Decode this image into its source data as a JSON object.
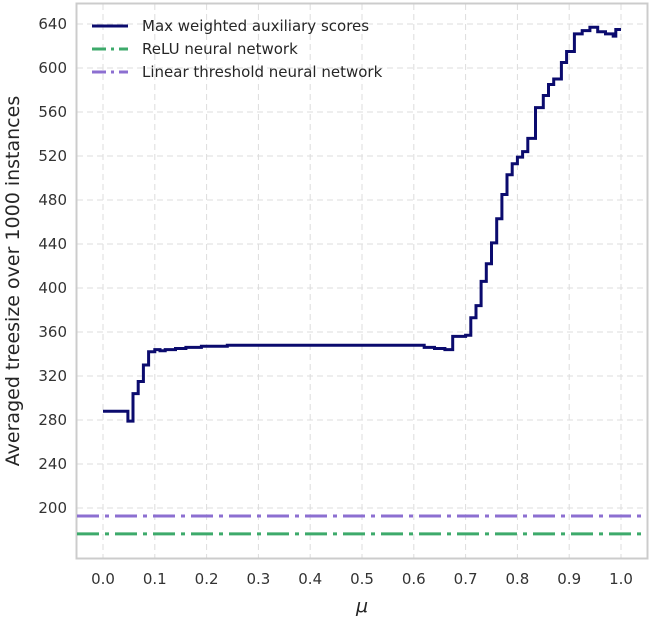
{
  "chart_data": {
    "type": "line",
    "title": "",
    "xlabel": "μ",
    "ylabel": "Averaged treesize over 1000 instances",
    "xlim": [
      -0.05,
      1.05
    ],
    "ylim": [
      158,
      665
    ],
    "grid": true,
    "legend_position": "upper left",
    "xticks": [
      "0.0",
      "0.1",
      "0.2",
      "0.3",
      "0.4",
      "0.5",
      "0.6",
      "0.7",
      "0.8",
      "0.9",
      "1.0"
    ],
    "yticks": [
      "200",
      "240",
      "280",
      "320",
      "360",
      "400",
      "440",
      "480",
      "520",
      "560",
      "600",
      "640"
    ],
    "series": [
      {
        "name": "Max weighted auxiliary scores",
        "style": "solid-step",
        "color": "#0b0b6e",
        "x": [
          0.0,
          0.048,
          0.048,
          0.058,
          0.058,
          0.068,
          0.068,
          0.078,
          0.078,
          0.088,
          0.088,
          0.1,
          0.1,
          0.11,
          0.11,
          0.12,
          0.12,
          0.14,
          0.14,
          0.16,
          0.16,
          0.19,
          0.19,
          0.24,
          0.24,
          0.62,
          0.62,
          0.64,
          0.64,
          0.66,
          0.66,
          0.675,
          0.675,
          0.7,
          0.7,
          0.71,
          0.71,
          0.72,
          0.72,
          0.73,
          0.73,
          0.74,
          0.74,
          0.75,
          0.75,
          0.76,
          0.76,
          0.77,
          0.77,
          0.78,
          0.78,
          0.79,
          0.79,
          0.8,
          0.8,
          0.81,
          0.81,
          0.82,
          0.82,
          0.835,
          0.835,
          0.85,
          0.85,
          0.86,
          0.86,
          0.87,
          0.87,
          0.885,
          0.885,
          0.895,
          0.895,
          0.91,
          0.91,
          0.925,
          0.925,
          0.94,
          0.94,
          0.955,
          0.955,
          0.97,
          0.97,
          0.985,
          0.985,
          0.99,
          0.99,
          1.0
        ],
        "y": [
          288,
          288,
          279,
          279,
          304,
          304,
          315,
          315,
          330,
          330,
          342,
          342,
          344,
          344,
          343,
          343,
          344,
          344,
          345,
          345,
          346,
          346,
          347,
          347,
          348,
          348,
          346,
          346,
          345,
          345,
          344,
          344,
          356,
          356,
          357,
          357,
          373,
          373,
          384,
          384,
          406,
          406,
          422,
          422,
          441,
          441,
          463,
          463,
          485,
          485,
          503,
          503,
          513,
          513,
          519,
          519,
          524,
          524,
          536,
          536,
          564,
          564,
          575,
          575,
          585,
          585,
          590,
          590,
          605,
          605,
          615,
          615,
          631,
          631,
          634,
          634,
          637,
          637,
          633,
          633,
          631,
          631,
          629,
          629,
          635,
          635
        ]
      },
      {
        "name": "ReLU neural network",
        "style": "dashdot",
        "color": "#3daa6b",
        "constant": 176.5
      },
      {
        "name": "Linear threshold neural network",
        "style": "dashdot",
        "color": "#8c6fd1",
        "constant": 192.7
      }
    ]
  },
  "legend": {
    "items": [
      {
        "label": "Max weighted auxiliary scores",
        "color": "#0b0b6e",
        "style": "solid"
      },
      {
        "label": "ReLU neural network",
        "color": "#3daa6b",
        "style": "dashdot"
      },
      {
        "label": "Linear threshold neural network",
        "color": "#8c6fd1",
        "style": "dashdot"
      }
    ]
  },
  "colors": {
    "frame": "#cccccc",
    "grid": "#dddddd",
    "main": "#0b0b6e",
    "relu": "#3daa6b",
    "lt": "#8c6fd1"
  }
}
